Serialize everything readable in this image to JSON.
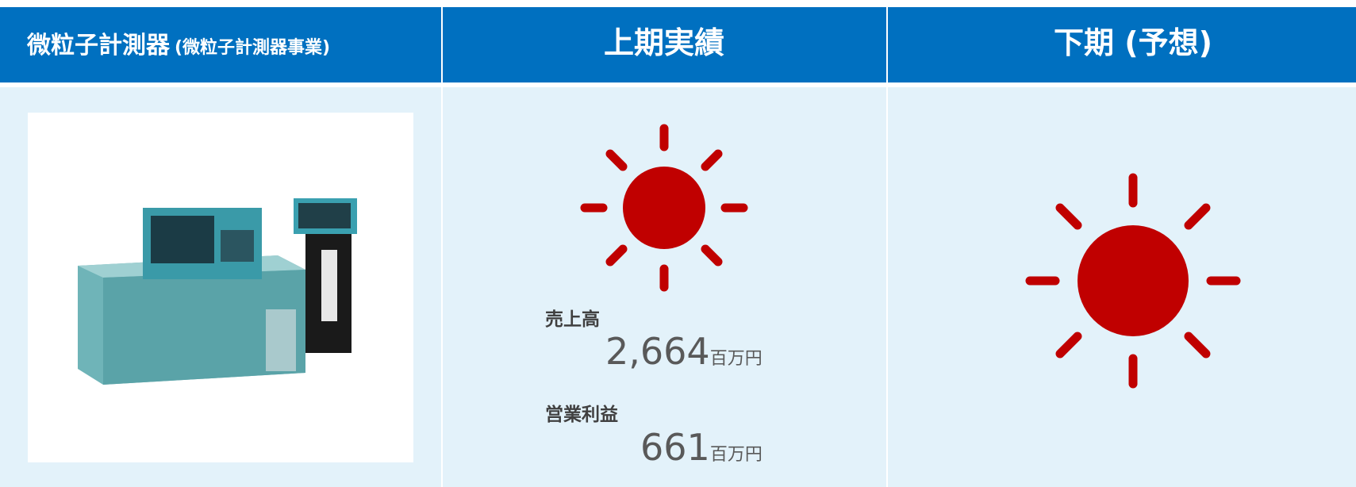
{
  "header": {
    "segment": "微粒子計測器",
    "segment_sub": "(微粒子計測器事業)",
    "first_half": "上期実績",
    "second_half": "下期 (予想)"
  },
  "results": {
    "sales_label": "売上高",
    "sales": "2,664",
    "profit_label": "営業利益",
    "profit": "661",
    "unit": "百万円"
  }
}
